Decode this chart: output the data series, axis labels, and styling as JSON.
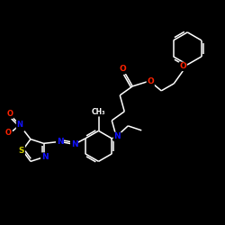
{
  "bg_color": "#000000",
  "bond_color": "#ffffff",
  "atom_colors": {
    "O": "#ff2200",
    "N": "#1111ff",
    "S": "#cccc00",
    "C": "#ffffff"
  },
  "figsize": [
    2.5,
    2.5
  ],
  "dpi": 100
}
